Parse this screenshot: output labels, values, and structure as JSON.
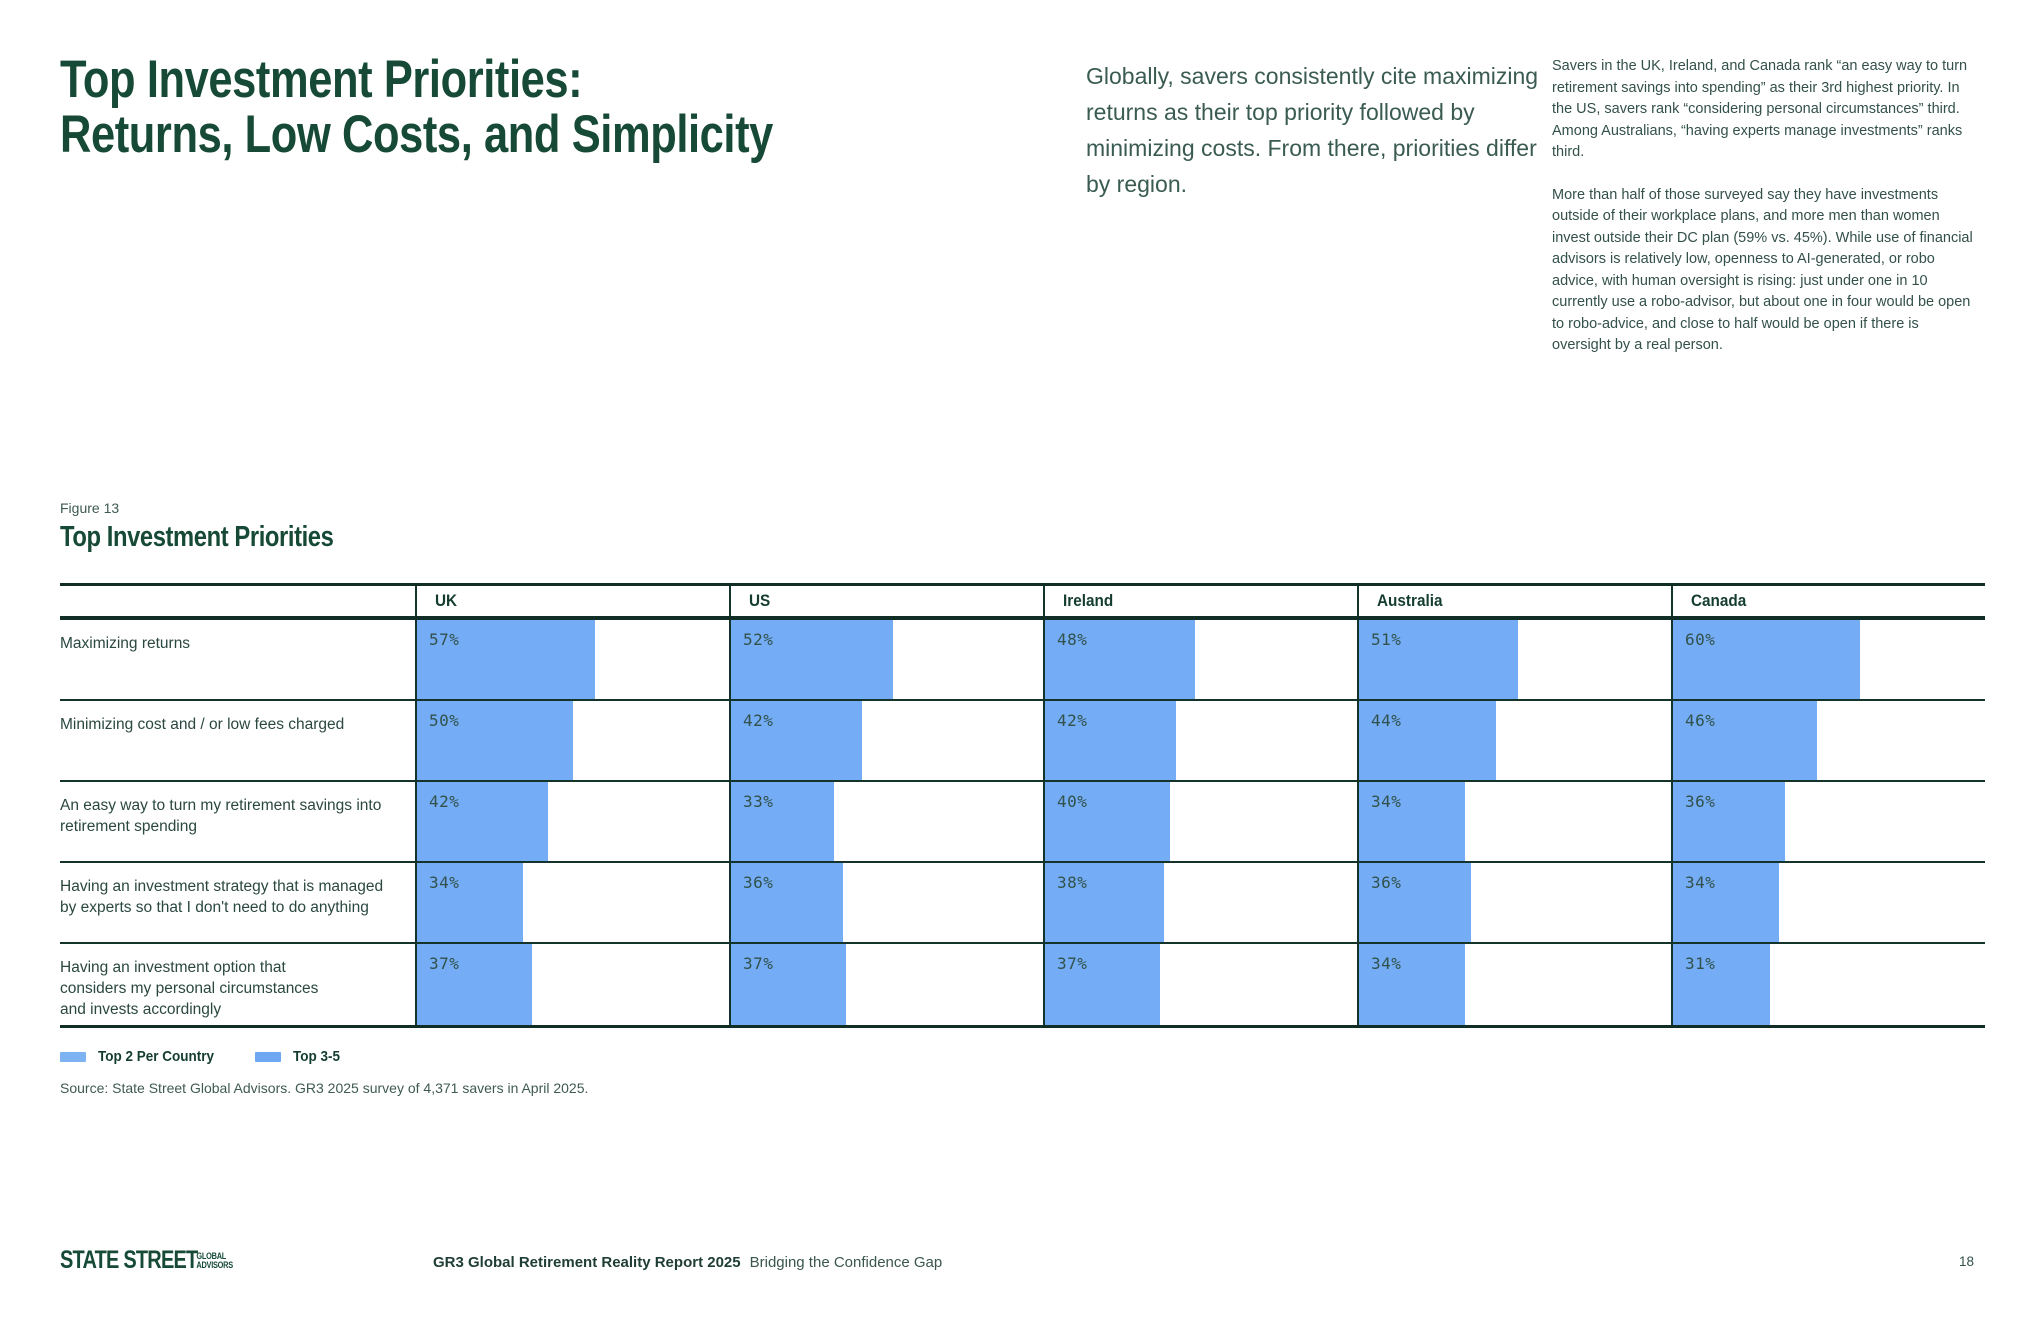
{
  "header": {
    "title_line1": "Top Investment Priorities:",
    "title_line2": "Returns, Low Costs, and Simplicity",
    "intro": "Globally, savers consistently cite maximizing returns as their top priority followed by minimizing costs. From there, priorities differ by region.",
    "note1": "Savers in the UK, Ireland, and Canada rank “an easy way to turn retirement savings into spending” as their 3rd highest priority. In the US, savers rank “considering personal circumstances” third. Among Australians, “having experts manage investments” ranks third.",
    "note2": "More than half of those surveyed say they have investments outside of their workplace plans, and more men than women invest outside their DC plan (59% vs. 45%). While use of financial advisors is relatively low, openness to AI-generated, or robo advice, with human oversight is rising: just under one in 10 currently use a robo-advisor, but about one in four would be open to robo-advice, and close to half would be open if there is oversight by a real person."
  },
  "figure": {
    "label": "Figure 13",
    "title": "Top Investment Priorities",
    "source": "Source: State Street Global Advisors. GR3 2025 survey of 4,371 savers in April 2025.",
    "legend": [
      {
        "label": "Top 2 Per Country",
        "color": "#7EB3F3"
      },
      {
        "label": "Top 3-5",
        "color": "#6EA7F2"
      }
    ]
  },
  "chart_data": {
    "type": "bar",
    "orientation": "horizontal",
    "title": "Top Investment Priorities",
    "columns": [
      "UK",
      "US",
      "Ireland",
      "Australia",
      "Canada"
    ],
    "categories": [
      "Maximizing returns",
      "Minimizing cost and / or low fees charged",
      "An easy way to turn my retirement savings into\nretirement spending",
      "Having an investment strategy that is managed\nby experts so that I don't need to do anything",
      "Having an investment option that\nconsiders my personal circumstances\nand invests accordingly"
    ],
    "series": [
      {
        "name": "UK",
        "values": [
          57,
          50,
          42,
          34,
          37
        ]
      },
      {
        "name": "US",
        "values": [
          52,
          42,
          33,
          36,
          37
        ]
      },
      {
        "name": "Ireland",
        "values": [
          48,
          42,
          40,
          38,
          37
        ]
      },
      {
        "name": "Australia",
        "values": [
          51,
          44,
          34,
          36,
          34
        ]
      },
      {
        "name": "Canada",
        "values": [
          60,
          46,
          36,
          34,
          31
        ]
      }
    ],
    "value_suffix": "%",
    "xlim": [
      0,
      100
    ],
    "grid": false,
    "legend_position": "bottom-left",
    "bar_color": "#74ADF6"
  },
  "footer": {
    "logo_primary": "STATE STREET",
    "logo_secondary_line1": "GLOBAL",
    "logo_secondary_line2": "ADVISORS",
    "report_title": "GR3 Global Retirement Reality Report 2025",
    "report_subtitle": "Bridging the Confidence Gap",
    "page_number": "18"
  }
}
